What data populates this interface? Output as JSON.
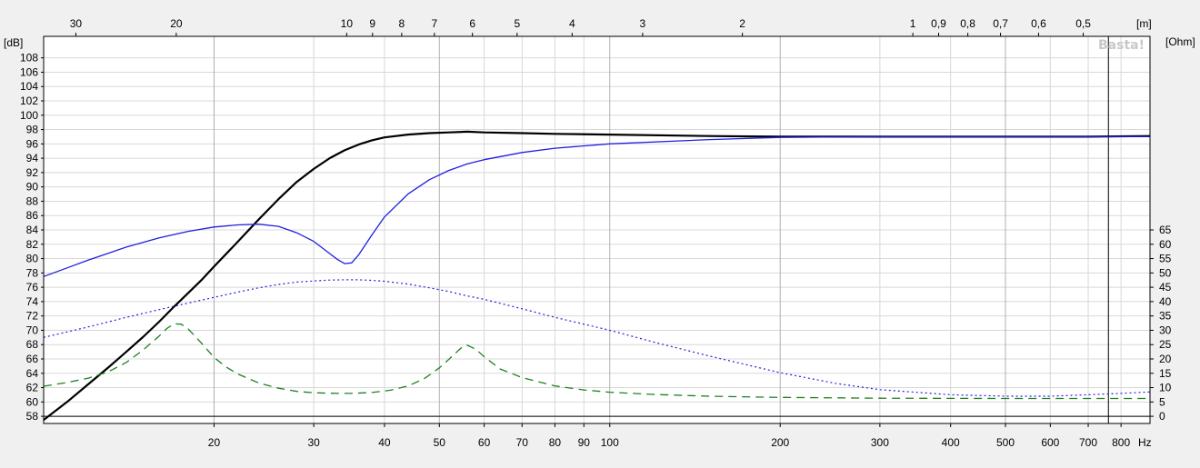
{
  "chart_data": {
    "type": "line",
    "xscale": "log",
    "xlim": [
      10,
      900
    ],
    "x_unit": "Hz",
    "x_ticks": [
      20,
      30,
      40,
      50,
      60,
      70,
      80,
      90,
      100,
      200,
      300,
      400,
      500,
      600,
      700,
      800
    ],
    "x_tick_labels": [
      "20",
      "30",
      "40",
      "50",
      "60",
      "70",
      "80",
      "90",
      "100",
      "200",
      "300",
      "400",
      "500",
      "600",
      "700",
      "800"
    ],
    "x_major": [
      20,
      50,
      100,
      200,
      500
    ],
    "top_axis": {
      "unit": "[m]",
      "ticks": [
        {
          "label": "30",
          "hz": 11.4
        },
        {
          "label": "20",
          "hz": 17.15
        },
        {
          "label": "10",
          "hz": 34.3
        },
        {
          "label": "9",
          "hz": 38.1
        },
        {
          "label": "8",
          "hz": 42.9
        },
        {
          "label": "7",
          "hz": 49.0
        },
        {
          "label": "6",
          "hz": 57.2
        },
        {
          "label": "5",
          "hz": 68.6
        },
        {
          "label": "4",
          "hz": 85.8
        },
        {
          "label": "3",
          "hz": 114.3
        },
        {
          "label": "2",
          "hz": 171.5
        },
        {
          "label": "1",
          "hz": 343
        },
        {
          "label": "0,9",
          "hz": 381
        },
        {
          "label": "0,8",
          "hz": 429
        },
        {
          "label": "0,7",
          "hz": 490
        },
        {
          "label": "0,6",
          "hz": 572
        },
        {
          "label": "0,5",
          "hz": 686
        }
      ]
    },
    "y_left": {
      "unit": "[dB]",
      "min": 57,
      "max": 111,
      "ticks": [
        58,
        60,
        62,
        64,
        66,
        68,
        70,
        72,
        74,
        76,
        78,
        80,
        82,
        84,
        86,
        88,
        90,
        92,
        94,
        96,
        98,
        100,
        102,
        104,
        106,
        108
      ]
    },
    "y_right": {
      "unit": "[Ohm]",
      "ohm_at_58dB": 0,
      "db_per_ohm": 0.4,
      "ticks": [
        0,
        5,
        10,
        15,
        20,
        25,
        30,
        35,
        40,
        45,
        50,
        55,
        60,
        65
      ]
    },
    "cursor_hz": 760,
    "grid": true,
    "watermark": "Basta!",
    "colors": {
      "spl": "#000000",
      "blue": "#2020e0",
      "dotted": "#2020e0",
      "impedance": "#208020",
      "grid": "#d8d8d8",
      "grid_major": "#b0b0b0"
    },
    "series": [
      {
        "style": "solid-black",
        "unit": "dB",
        "x": [
          10,
          11,
          12,
          13,
          14,
          15,
          16,
          17,
          18,
          19,
          20,
          22,
          24,
          26,
          28,
          30,
          32,
          34,
          36,
          38,
          40,
          44,
          48,
          52,
          56,
          60,
          70,
          80,
          100,
          150,
          200,
          300,
          500,
          700,
          900
        ],
        "values": [
          57.5,
          60,
          62.5,
          64.8,
          67,
          69.1,
          71.2,
          73.3,
          75.2,
          77,
          78.9,
          82.3,
          85.5,
          88.3,
          90.7,
          92.5,
          94,
          95.1,
          95.9,
          96.5,
          96.9,
          97.3,
          97.5,
          97.6,
          97.7,
          97.6,
          97.5,
          97.4,
          97.3,
          97.1,
          97.0,
          97.0,
          97.0,
          97.0,
          97.1
        ]
      },
      {
        "style": "solid-blue",
        "unit": "dB",
        "x": [
          10,
          11,
          12,
          14,
          16,
          18,
          20,
          22,
          24,
          26,
          28,
          30,
          32,
          33,
          34,
          35,
          36,
          38,
          40,
          44,
          48,
          52,
          56,
          60,
          70,
          80,
          100,
          150,
          200,
          300,
          500,
          900
        ],
        "values": [
          77.5,
          78.7,
          79.8,
          81.6,
          82.9,
          83.8,
          84.4,
          84.7,
          84.8,
          84.5,
          83.6,
          82.4,
          80.7,
          79.9,
          79.3,
          79.4,
          80.5,
          83.3,
          85.8,
          89,
          91,
          92.3,
          93.2,
          93.8,
          94.8,
          95.4,
          96,
          96.6,
          96.9,
          97,
          97,
          97
        ]
      },
      {
        "style": "dotted-blue",
        "unit": "Ohm",
        "x": [
          10,
          12,
          14,
          16,
          18,
          20,
          22,
          24,
          26,
          28,
          30,
          32,
          34,
          36,
          38,
          40,
          44,
          48,
          52,
          56,
          60,
          70,
          80,
          100,
          120,
          150,
          200,
          250,
          300,
          400,
          500,
          600,
          700,
          800,
          900
        ],
        "values": [
          27.5,
          31.2,
          34.5,
          37.2,
          39.5,
          41.5,
          43.3,
          44.8,
          46,
          46.8,
          47.2,
          47.5,
          47.6,
          47.6,
          47.4,
          47.1,
          46.1,
          44.8,
          43.5,
          42,
          40.8,
          37.5,
          34.5,
          30,
          25.8,
          21,
          15.2,
          11.5,
          9.3,
          7.5,
          7.0,
          7.0,
          7.5,
          8.0,
          8.5
        ]
      },
      {
        "style": "dashed-green",
        "unit": "Ohm",
        "x": [
          10,
          11,
          12,
          13,
          14,
          15,
          16,
          16.5,
          17,
          17.5,
          18,
          19,
          20,
          21,
          22,
          24,
          26,
          28,
          30,
          33,
          35,
          38,
          41,
          44,
          47,
          50,
          52,
          54,
          55,
          56,
          58,
          60,
          64,
          70,
          80,
          90,
          100,
          120,
          150,
          200,
          300,
          500,
          700,
          900
        ],
        "values": [
          10.5,
          11.8,
          13.3,
          15.5,
          18.8,
          23.2,
          28,
          30.6,
          32.3,
          32.1,
          30.5,
          25.5,
          20.5,
          17.2,
          14.8,
          11.6,
          9.8,
          8.7,
          8.2,
          8.0,
          8.0,
          8.3,
          9.1,
          10.6,
          13.1,
          16.9,
          19.9,
          22.9,
          24.3,
          24.8,
          23.4,
          20.8,
          16.5,
          13.5,
          10.6,
          9.2,
          8.4,
          7.6,
          7.0,
          6.6,
          6.3,
          6.2,
          6.2,
          6.2
        ]
      }
    ]
  }
}
